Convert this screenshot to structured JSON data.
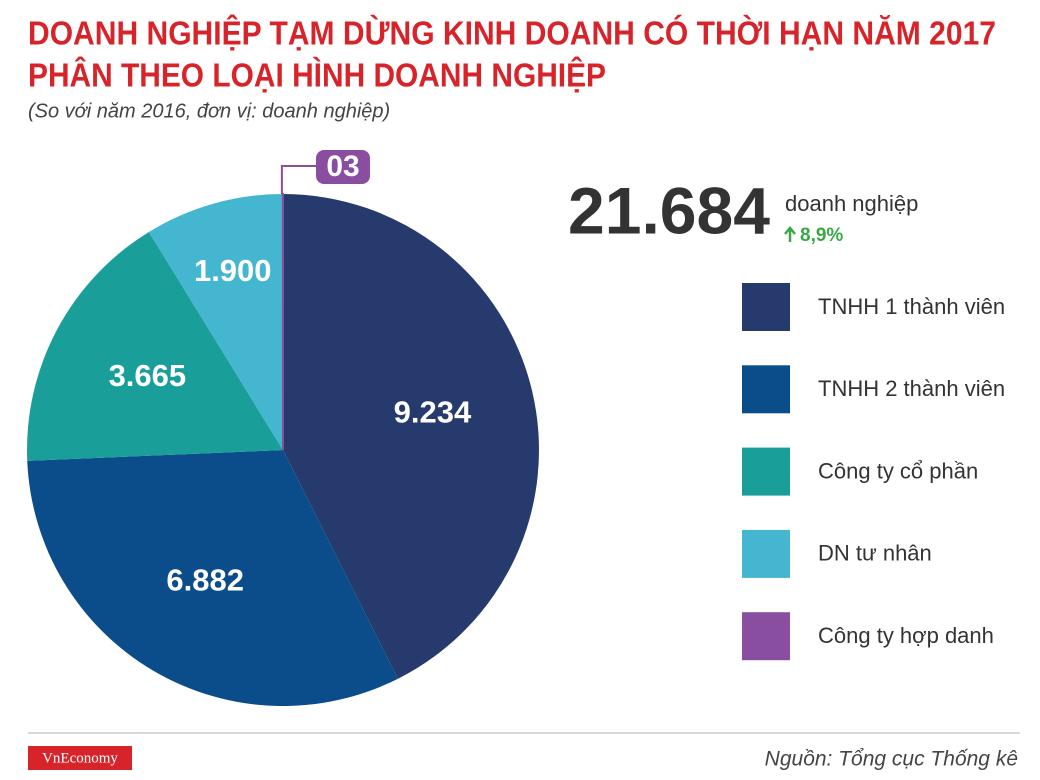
{
  "chart_data": {
    "type": "pie",
    "title": [
      "DOANH NGHIỆP TẠM DỪNG KINH DOANH CÓ THỜI HẠN NĂM 2017",
      "PHÂN THEO LOẠI HÌNH DOANH NGHIỆP"
    ],
    "subtitle": "(So với năm 2016, đơn vị: doanh nghiệp)",
    "categories": [
      "TNHH 1 thành viên",
      "TNHH 2 thành viên",
      "Công ty cổ phần",
      "DN tư nhân",
      "Công ty hợp danh"
    ],
    "values": [
      9234,
      6882,
      3665,
      1900,
      3
    ],
    "value_labels": [
      "9.234",
      "6.882",
      "3.665",
      "1.900",
      "03"
    ],
    "colors": [
      "#263a6e",
      "#0b4d8a",
      "#1a9e9a",
      "#45b6cf",
      "#8a4ea0"
    ],
    "total": 21684,
    "total_label": "21.684",
    "unit": "doanh nghiệp",
    "change": 8.9,
    "change_label": "8,9%",
    "source": "Nguồn: Tổng cục Thống kê",
    "brand": "VnEconomy"
  }
}
